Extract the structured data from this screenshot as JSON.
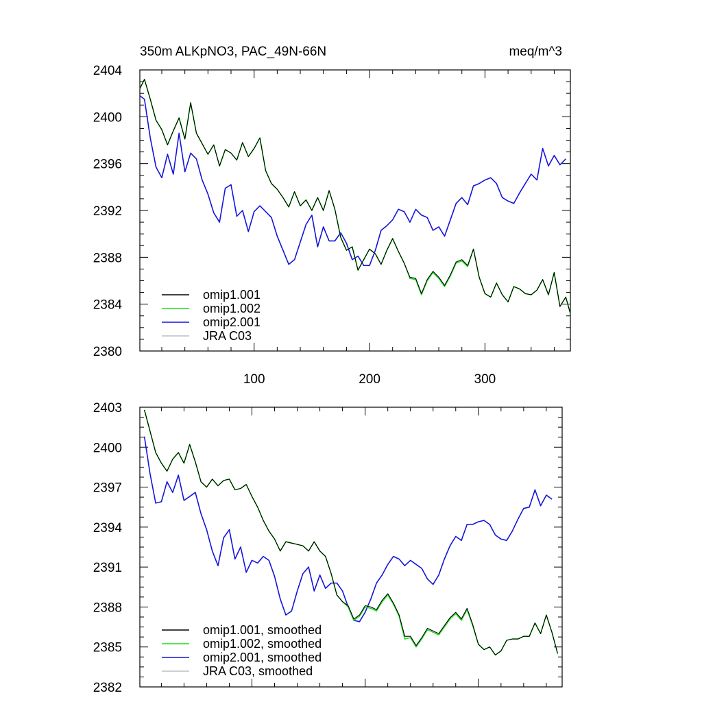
{
  "title_left": "350m ALKpNO3, PAC_49N-66N",
  "title_right": "meq/m^3",
  "chart_data": [
    {
      "type": "line",
      "panel": "top",
      "xlim": [
        1,
        374
      ],
      "ylim": [
        2380,
        2404
      ],
      "xticks": [
        100,
        200,
        300
      ],
      "xtick_labels": [
        "100",
        "200",
        "300"
      ],
      "yticks": [
        2380,
        2384,
        2388,
        2392,
        2396,
        2400,
        2404
      ],
      "ytick_labels": [
        "2380",
        "2384",
        "2388",
        "2392",
        "2396",
        "2400",
        "2404"
      ],
      "legend_position": "bottom-left",
      "series": [
        {
          "name": "omip1.001",
          "color": "#000000",
          "x": [
            1,
            5,
            10,
            15,
            20,
            25,
            30,
            35,
            40,
            45,
            50,
            55,
            60,
            65,
            70,
            75,
            80,
            85,
            90,
            95,
            100,
            105,
            110,
            115,
            120,
            125,
            130,
            135,
            140,
            145,
            150,
            155,
            160,
            165,
            170,
            175,
            180,
            185,
            190,
            195,
            200,
            205,
            210,
            215,
            220,
            225,
            230,
            235,
            240,
            245,
            250,
            255,
            260,
            265,
            270,
            275,
            280,
            285,
            290,
            295,
            300,
            305,
            310,
            315,
            320,
            325,
            330,
            335,
            340,
            345,
            350,
            355,
            360,
            365,
            370,
            374
          ],
          "y": [
            2402.4,
            2403.2,
            2401.5,
            2399.7,
            2398.9,
            2397.6,
            2398.8,
            2399.9,
            2398.1,
            2401.2,
            2398.6,
            2397.7,
            2396.8,
            2397.6,
            2395.8,
            2397.2,
            2396.9,
            2396.3,
            2397.8,
            2396.6,
            2397.3,
            2398.2,
            2395.4,
            2394.3,
            2393.8,
            2393.1,
            2392.3,
            2393.6,
            2392.4,
            2392.9,
            2392.0,
            2393.1,
            2392.0,
            2393.7,
            2392.1,
            2389.7,
            2388.6,
            2388.9,
            2386.9,
            2387.8,
            2388.7,
            2388.3,
            2387.4,
            2388.6,
            2389.6,
            2388.5,
            2387.5,
            2386.3,
            2386.2,
            2384.9,
            2386.1,
            2386.8,
            2386.3,
            2385.6,
            2386.5,
            2387.6,
            2387.8,
            2387.3,
            2388.7,
            2386.3,
            2384.9,
            2384.6,
            2385.8,
            2384.8,
            2384.2,
            2385.5,
            2385.3,
            2384.9,
            2384.8,
            2385.2,
            2386.1,
            2384.8,
            2386.7,
            2383.8,
            2384.6,
            2383.2
          ]
        },
        {
          "name": "omip1.002",
          "color": "#18e018",
          "x": [
            1,
            5,
            10,
            15,
            20,
            25,
            30,
            35,
            40,
            45,
            50,
            55,
            60,
            65,
            70,
            75,
            80,
            85,
            90,
            95,
            100,
            105,
            110,
            115,
            120,
            125,
            130,
            135,
            140,
            145,
            150,
            155,
            160,
            165,
            170,
            175,
            180,
            185,
            190,
            195,
            200,
            205,
            210,
            215,
            220,
            225,
            230,
            235,
            240,
            245,
            250,
            255,
            260,
            265,
            270,
            275,
            280,
            285,
            290,
            295,
            300,
            305,
            310,
            315,
            320,
            325,
            330,
            335,
            340,
            345,
            350,
            355,
            360,
            365,
            370,
            374
          ],
          "y": [
            2402.4,
            2403.2,
            2401.5,
            2399.7,
            2398.9,
            2397.6,
            2398.8,
            2399.9,
            2398.1,
            2401.2,
            2398.6,
            2397.7,
            2396.8,
            2397.6,
            2395.8,
            2397.2,
            2396.9,
            2396.3,
            2397.8,
            2396.6,
            2397.3,
            2398.2,
            2395.4,
            2394.3,
            2393.8,
            2393.1,
            2392.3,
            2393.6,
            2392.4,
            2392.9,
            2392.0,
            2393.1,
            2392.0,
            2393.7,
            2392.1,
            2389.7,
            2388.6,
            2388.9,
            2386.9,
            2387.8,
            2388.7,
            2388.3,
            2387.4,
            2388.6,
            2389.6,
            2388.5,
            2387.5,
            2386.2,
            2386.1,
            2384.8,
            2386.0,
            2386.7,
            2386.2,
            2385.5,
            2386.4,
            2387.5,
            2387.7,
            2387.2,
            2388.7,
            2386.3,
            2384.9,
            2384.6,
            2385.8,
            2384.8,
            2384.2,
            2385.5,
            2385.3,
            2384.9,
            2384.8,
            2385.2,
            2386.1,
            2384.8,
            2386.7,
            2383.8,
            2384.6,
            2383.2
          ]
        },
        {
          "name": "omip2.001",
          "color": "#1414dc",
          "x": [
            1,
            5,
            10,
            15,
            20,
            25,
            30,
            35,
            40,
            45,
            50,
            55,
            60,
            65,
            70,
            75,
            80,
            85,
            90,
            95,
            100,
            105,
            110,
            115,
            120,
            125,
            130,
            135,
            140,
            145,
            150,
            155,
            160,
            165,
            170,
            175,
            180,
            185,
            190,
            195,
            200,
            205,
            210,
            215,
            220,
            225,
            230,
            235,
            240,
            245,
            250,
            255,
            260,
            265,
            270,
            275,
            280,
            285,
            290,
            295,
            300,
            305,
            310,
            315,
            320,
            325,
            330,
            335,
            340,
            345,
            350,
            355,
            360,
            365,
            370
          ],
          "y": [
            2401.8,
            2401.5,
            2398.2,
            2395.7,
            2394.8,
            2396.8,
            2395.1,
            2398.6,
            2395.3,
            2396.9,
            2396.4,
            2394.6,
            2393.4,
            2391.8,
            2391.0,
            2393.9,
            2394.2,
            2391.5,
            2392.0,
            2390.2,
            2391.9,
            2392.4,
            2391.9,
            2391.4,
            2389.8,
            2388.6,
            2387.4,
            2387.8,
            2389.3,
            2390.8,
            2391.6,
            2388.9,
            2390.6,
            2389.4,
            2389.4,
            2390.1,
            2389.2,
            2387.8,
            2388.1,
            2387.3,
            2387.3,
            2388.6,
            2390.3,
            2390.7,
            2391.2,
            2392.1,
            2391.9,
            2391.0,
            2392.1,
            2391.6,
            2391.4,
            2390.3,
            2390.6,
            2389.8,
            2391.2,
            2392.6,
            2393.1,
            2392.5,
            2394.1,
            2394.3,
            2394.6,
            2394.8,
            2394.3,
            2393.1,
            2392.8,
            2392.6,
            2393.5,
            2394.3,
            2395.1,
            2394.6,
            2397.3,
            2395.8,
            2396.7,
            2395.9,
            2396.4
          ]
        },
        {
          "name": "JRA C03",
          "color": "#bfbfbf",
          "x": [],
          "y": []
        }
      ]
    },
    {
      "type": "line",
      "panel": "bottom",
      "xlim": [
        1,
        374
      ],
      "ylim": [
        2382,
        2403
      ],
      "xticks": [
        100,
        200,
        300
      ],
      "xtick_labels": [
        "",
        "",
        ""
      ],
      "yticks": [
        2382,
        2385,
        2388,
        2391,
        2394,
        2397,
        2400,
        2403
      ],
      "ytick_labels": [
        "2382",
        "2385",
        "2388",
        "2391",
        "2394",
        "2397",
        "2400",
        "2403"
      ],
      "legend_position": "bottom-left",
      "series": [
        {
          "name": "omip1.001, smoothed",
          "color": "#000000",
          "x": [
            5,
            10,
            15,
            20,
            25,
            30,
            35,
            40,
            45,
            50,
            55,
            60,
            65,
            70,
            75,
            80,
            85,
            90,
            95,
            100,
            105,
            110,
            115,
            120,
            125,
            130,
            135,
            140,
            145,
            150,
            155,
            160,
            165,
            170,
            175,
            180,
            185,
            190,
            195,
            200,
            205,
            210,
            215,
            220,
            225,
            230,
            235,
            240,
            245,
            250,
            255,
            260,
            265,
            270,
            275,
            280,
            285,
            290,
            295,
            300,
            305,
            310,
            315,
            320,
            325,
            330,
            335,
            340,
            345,
            350,
            355,
            360,
            365,
            370
          ],
          "y": [
            2402.8,
            2401.2,
            2399.6,
            2398.8,
            2398.2,
            2399.1,
            2399.6,
            2398.8,
            2400.2,
            2398.9,
            2397.4,
            2397.0,
            2397.6,
            2397.1,
            2397.5,
            2397.6,
            2396.8,
            2396.9,
            2397.2,
            2396.3,
            2395.5,
            2394.5,
            2393.7,
            2393.1,
            2392.2,
            2392.9,
            2392.8,
            2392.7,
            2392.6,
            2392.2,
            2392.9,
            2392.2,
            2391.8,
            2390.5,
            2388.9,
            2388.4,
            2388.1,
            2387.1,
            2387.4,
            2388.1,
            2388.0,
            2387.8,
            2388.5,
            2389.0,
            2388.3,
            2387.4,
            2385.8,
            2385.8,
            2385.1,
            2385.7,
            2386.4,
            2386.2,
            2386.0,
            2386.6,
            2387.2,
            2387.6,
            2387.1,
            2387.9,
            2386.7,
            2385.2,
            2384.8,
            2385.0,
            2384.4,
            2384.7,
            2385.5,
            2385.6,
            2385.6,
            2385.8,
            2385.8,
            2386.8,
            2386.0,
            2387.4,
            2386.1,
            2384.5
          ]
        },
        {
          "name": "omip1.002, smoothed",
          "color": "#18e018",
          "x": [
            5,
            10,
            15,
            20,
            25,
            30,
            35,
            40,
            45,
            50,
            55,
            60,
            65,
            70,
            75,
            80,
            85,
            90,
            95,
            100,
            105,
            110,
            115,
            120,
            125,
            130,
            135,
            140,
            145,
            150,
            155,
            160,
            165,
            170,
            175,
            180,
            185,
            190,
            195,
            200,
            205,
            210,
            215,
            220,
            225,
            230,
            235,
            240,
            245,
            250,
            255,
            260,
            265,
            270,
            275,
            280,
            285,
            290,
            295,
            300,
            305,
            310,
            315,
            320,
            325,
            330,
            335,
            340,
            345,
            350,
            355,
            360,
            365,
            370
          ],
          "y": [
            2402.8,
            2401.2,
            2399.6,
            2398.8,
            2398.2,
            2399.1,
            2399.6,
            2398.8,
            2400.2,
            2398.9,
            2397.4,
            2397.0,
            2397.6,
            2397.1,
            2397.5,
            2397.6,
            2396.8,
            2396.9,
            2397.2,
            2396.3,
            2395.5,
            2394.5,
            2393.7,
            2393.1,
            2392.2,
            2392.9,
            2392.8,
            2392.7,
            2392.6,
            2392.2,
            2392.9,
            2392.2,
            2391.8,
            2390.5,
            2388.9,
            2388.4,
            2388.0,
            2387.0,
            2387.3,
            2388.0,
            2387.9,
            2387.7,
            2388.4,
            2388.9,
            2388.2,
            2387.3,
            2385.6,
            2385.7,
            2385.0,
            2385.6,
            2386.3,
            2386.1,
            2385.9,
            2386.5,
            2387.1,
            2387.5,
            2387.0,
            2387.8,
            2386.6,
            2385.2,
            2384.8,
            2385.0,
            2384.4,
            2384.7,
            2385.5,
            2385.6,
            2385.6,
            2385.8,
            2385.8,
            2386.8,
            2386.0,
            2387.4,
            2386.1,
            2384.5
          ]
        },
        {
          "name": "omip2.001, smoothed",
          "color": "#1414dc",
          "x": [
            5,
            10,
            15,
            20,
            25,
            30,
            35,
            40,
            45,
            50,
            55,
            60,
            65,
            70,
            75,
            80,
            85,
            90,
            95,
            100,
            105,
            110,
            115,
            120,
            125,
            130,
            135,
            140,
            145,
            150,
            155,
            160,
            165,
            170,
            175,
            180,
            185,
            190,
            195,
            200,
            205,
            210,
            215,
            220,
            225,
            230,
            235,
            240,
            245,
            250,
            255,
            260,
            265,
            270,
            275,
            280,
            285,
            290,
            295,
            300,
            305,
            310,
            315,
            320,
            325,
            330,
            335,
            340,
            345,
            350,
            355,
            360,
            365
          ],
          "y": [
            2400.8,
            2398.0,
            2395.8,
            2395.9,
            2397.4,
            2396.6,
            2397.9,
            2396.0,
            2396.3,
            2396.6,
            2395.0,
            2393.8,
            2392.2,
            2391.1,
            2393.2,
            2393.8,
            2391.6,
            2392.5,
            2390.6,
            2391.5,
            2391.3,
            2391.8,
            2391.5,
            2390.3,
            2388.6,
            2387.4,
            2387.7,
            2389.2,
            2390.5,
            2391.0,
            2389.2,
            2390.4,
            2389.4,
            2389.8,
            2389.8,
            2389.2,
            2388.0,
            2387.0,
            2386.9,
            2387.6,
            2388.6,
            2389.8,
            2390.4,
            2391.2,
            2391.8,
            2391.6,
            2391.1,
            2391.5,
            2391.2,
            2390.9,
            2390.1,
            2389.7,
            2390.4,
            2391.6,
            2392.6,
            2393.3,
            2393.0,
            2394.2,
            2394.2,
            2394.4,
            2394.5,
            2394.2,
            2393.4,
            2393.1,
            2393.0,
            2393.7,
            2394.6,
            2395.4,
            2395.5,
            2396.8,
            2395.6,
            2396.4,
            2396.1
          ]
        },
        {
          "name": "JRA C03, smoothed",
          "color": "#bfbfbf",
          "x": [],
          "y": []
        }
      ]
    }
  ]
}
